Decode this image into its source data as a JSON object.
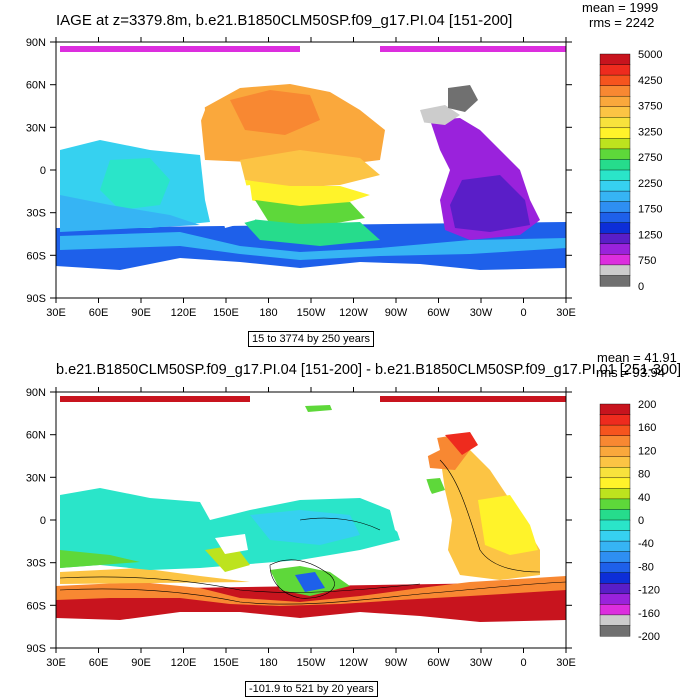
{
  "panels": [
    {
      "title": "IAGE at z=3379.8m, b.e21.B1850CLM50SP.f09_g17.PI.04 [151-200]",
      "stats": {
        "mean": "mean = 1999",
        "rms": "rms = 2242"
      },
      "range_text": "15 to 3774 by 250 years",
      "lat_labels": [
        "90N",
        "60N",
        "30N",
        "0",
        "30S",
        "60S",
        "90S"
      ],
      "lon_labels": [
        "30E",
        "60E",
        "90E",
        "120E",
        "150E",
        "180",
        "150W",
        "120W",
        "90W",
        "60W",
        "30W",
        "0",
        "30E"
      ],
      "colorbar_labels": [
        "5000",
        "4250",
        "3750",
        "3250",
        "2750",
        "2250",
        "1750",
        "1250",
        "750",
        "0"
      ],
      "colorbar_colors": [
        "#c8141e",
        "#ee2b1e",
        "#f6541e",
        "#f88832",
        "#faa83c",
        "#fcc444",
        "#f8e23c",
        "#fff32a",
        "#bde31e",
        "#5ed83a",
        "#26dc8c",
        "#2ae5c9",
        "#36d1f0",
        "#36b4f4",
        "#2e8ff2",
        "#1e60ea",
        "#0d2ed8",
        "#5a1ec8",
        "#9a22dc",
        "#dc2ede",
        "#cccccc",
        "#707070"
      ]
    },
    {
      "title": "b.e21.B1850CLM50SP.f09_g17.PI.04 [151-200] - b.e21.B1850CLM50SP.f09_g17.PI.01 [251-300]",
      "stats": {
        "mean": "mean = 41.91",
        "rms": "rms = 93.94"
      },
      "range_text": "-101.9 to 521 by 20 years",
      "lat_labels": [
        "90N",
        "60N",
        "30N",
        "0",
        "30S",
        "60S",
        "90S"
      ],
      "lon_labels": [
        "30E",
        "60E",
        "90E",
        "120E",
        "150E",
        "180",
        "150W",
        "120W",
        "90W",
        "60W",
        "30W",
        "0",
        "30E"
      ],
      "colorbar_labels": [
        "200",
        "160",
        "120",
        "80",
        "40",
        "0",
        "-40",
        "-80",
        "-120",
        "-160",
        "-200"
      ],
      "colorbar_colors": [
        "#c8141e",
        "#ee2b1e",
        "#f6541e",
        "#f88832",
        "#faa83c",
        "#fcc444",
        "#f8e23c",
        "#fff32a",
        "#bde31e",
        "#5ed83a",
        "#26dc8c",
        "#2ae5c9",
        "#36d1f0",
        "#36b4f4",
        "#2e8ff2",
        "#1e60ea",
        "#0d2ed8",
        "#5a1ec8",
        "#9a22dc",
        "#dc2ede",
        "#cccccc",
        "#707070"
      ]
    }
  ]
}
